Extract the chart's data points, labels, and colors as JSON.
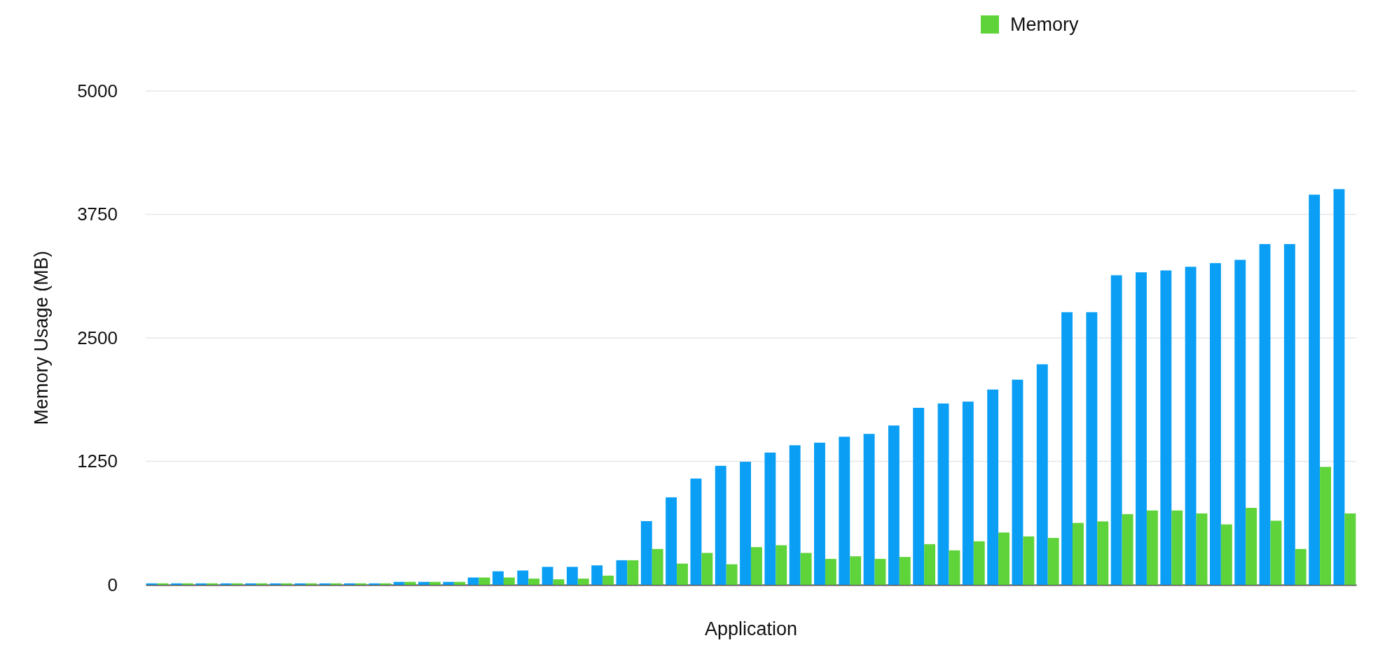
{
  "chart_data": {
    "type": "bar",
    "xlabel": "Application",
    "ylabel": "Memory Usage (MB)",
    "categories": [
      null,
      null,
      null,
      null,
      null,
      null,
      null,
      null,
      null,
      null,
      null,
      null,
      null,
      null,
      null,
      null,
      null,
      null,
      null,
      null,
      null,
      null,
      null,
      null,
      null,
      null,
      null,
      null,
      null,
      null,
      null,
      null,
      null,
      null,
      null,
      null,
      null,
      null,
      null,
      null,
      null,
      null,
      null,
      null,
      null,
      null,
      null,
      null,
      null
    ],
    "series": [
      {
        "color": "#0a9ff5",
        "values": [
          15,
          15,
          15,
          15,
          15,
          15,
          15,
          15,
          15,
          15,
          30,
          30,
          30,
          74,
          137,
          145,
          182,
          182,
          197,
          249,
          645,
          886,
          1076,
          1205,
          1246,
          1339,
          1413,
          1439,
          1499,
          1528,
          1613,
          1792,
          1836,
          1855,
          1977,
          2077,
          2233,
          2760,
          2760,
          3134,
          3164,
          3183,
          3220,
          3257,
          3290,
          3450,
          3450,
          3950,
          4006
        ]
      },
      {
        "name": "Memory",
        "color": "#5ed33a",
        "values": [
          15,
          15,
          15,
          15,
          15,
          15,
          15,
          15,
          15,
          15,
          30,
          30,
          30,
          74,
          74,
          63,
          56,
          63,
          93,
          249,
          363,
          215,
          323,
          208,
          382,
          401,
          323,
          263,
          289,
          263,
          282,
          412,
          349,
          441,
          530,
          490,
          475,
          627,
          642,
          716,
          753,
          753,
          723,
          612,
          779,
          649,
          363,
          1194,
          723
        ]
      }
    ],
    "ylim": [
      0,
      5000
    ],
    "yticks": [
      0,
      1250,
      2500,
      3750,
      5000
    ],
    "grid": "y",
    "legend": "top right"
  }
}
